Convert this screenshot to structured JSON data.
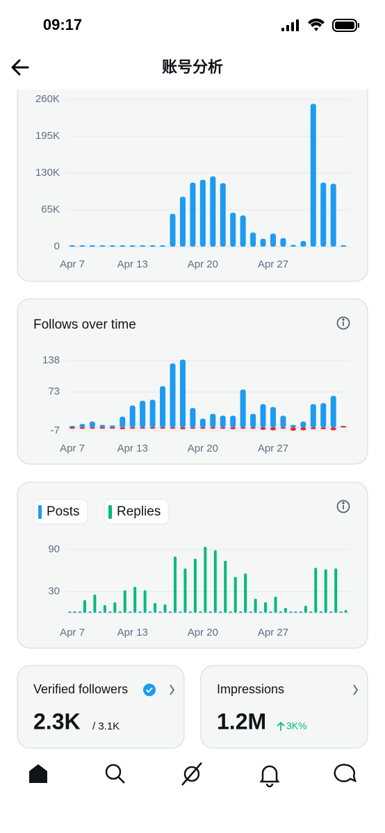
{
  "status_bar": {
    "time": "09:17"
  },
  "header": {
    "title": "账号分析"
  },
  "chart_data": [
    {
      "type": "bar",
      "categories": [
        "Apr 7",
        null,
        null,
        null,
        null,
        null,
        "Apr 13",
        null,
        null,
        null,
        null,
        null,
        null,
        "Apr 20",
        null,
        null,
        null,
        null,
        null,
        null,
        "Apr 27",
        null,
        null,
        null,
        null,
        null,
        null,
        null
      ],
      "values": [
        0,
        0,
        0,
        0,
        0,
        1000,
        1000,
        1000,
        1000,
        2000,
        58000,
        88000,
        113000,
        118000,
        124000,
        112000,
        60000,
        55000,
        25000,
        14000,
        23000,
        15000,
        3000,
        10000,
        252000,
        113000,
        111000,
        2000
      ],
      "color": "#1d9bf0",
      "ylim": [
        0,
        260000
      ],
      "yticks": [
        0,
        {
          "value": 65000,
          "label": "65K"
        },
        {
          "value": 130000,
          "label": "130K"
        },
        {
          "value": 195000,
          "label": "195K"
        },
        {
          "value": 260000,
          "label": "260K"
        }
      ],
      "grid": true
    },
    {
      "type": "bar",
      "title": "Follows over time",
      "categories": [
        "Apr 7",
        null,
        null,
        null,
        null,
        null,
        "Apr 13",
        null,
        null,
        null,
        null,
        null,
        null,
        "Apr 20",
        null,
        null,
        null,
        null,
        null,
        null,
        "Apr 27",
        null,
        null,
        null,
        null,
        null,
        null,
        null
      ],
      "series": [
        {
          "color": "#1d9bf0",
          "values": [
            3,
            7,
            12,
            5,
            4,
            22,
            45,
            55,
            57,
            85,
            132,
            140,
            40,
            18,
            28,
            24,
            24,
            78,
            28,
            48,
            42,
            24,
            5,
            12,
            48,
            50,
            65,
            0
          ]
        },
        {
          "color": "#f4212e",
          "values": [
            -3,
            -3,
            -2,
            -2,
            -2,
            -4,
            -3,
            -2,
            -2,
            -2,
            -3,
            -4,
            -3,
            -3,
            -3,
            -3,
            -4,
            -3,
            -3,
            -5,
            -6,
            -3,
            -7,
            -6,
            -4,
            -4,
            -6,
            0
          ]
        }
      ],
      "barmode": "overlay",
      "ylim": [
        -7,
        138
      ],
      "yticks": [
        -7,
        73,
        138
      ],
      "grid": true
    },
    {
      "type": "bar",
      "categories": [
        "Apr 7",
        null,
        null,
        null,
        null,
        null,
        "Apr 13",
        null,
        null,
        null,
        null,
        null,
        null,
        "Apr 20",
        null,
        null,
        null,
        null,
        null,
        null,
        "Apr 27",
        null,
        null,
        null,
        null,
        null,
        null,
        null
      ],
      "series": [
        {
          "name": "Posts",
          "color": "#1d9bf0",
          "values": [
            1,
            2,
            1,
            1,
            2,
            1,
            2,
            1,
            2,
            1,
            1,
            1,
            2,
            1,
            1,
            2,
            1,
            1,
            1,
            2,
            1,
            1,
            1,
            2,
            1,
            1,
            1,
            0
          ]
        },
        {
          "name": "Replies",
          "color": "#00ba7c",
          "values": [
            2,
            18,
            26,
            11,
            15,
            32,
            37,
            32,
            14,
            12,
            80,
            63,
            77,
            94,
            89,
            74,
            51,
            56,
            20,
            15,
            23,
            7,
            0,
            10,
            64,
            62,
            63,
            4
          ]
        }
      ],
      "barmode": "group",
      "ylim": [
        0,
        90
      ],
      "yticks": [
        30,
        90
      ],
      "grid": true
    }
  ],
  "cards": {
    "verified_followers": {
      "label": "Verified followers",
      "value": "2.3K",
      "total": "/ 3.1K"
    },
    "impressions": {
      "label": "Impressions",
      "value": "1.2M",
      "change": "3K%"
    }
  }
}
